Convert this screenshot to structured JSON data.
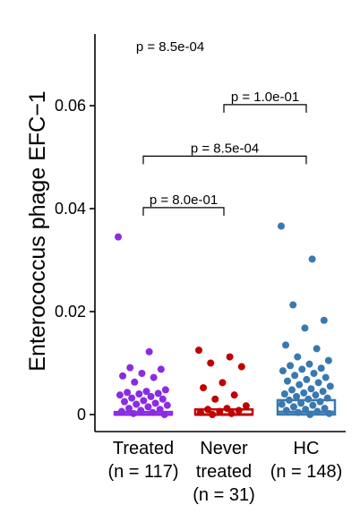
{
  "chart_data": {
    "type": "jitter-box",
    "title": "",
    "ylabel": "Enterococcus phage EFC−1",
    "xlabel": "",
    "ylim": [
      -0.0025,
      0.072
    ],
    "yticks": [
      0,
      0.02,
      0.04,
      0.06
    ],
    "ytick_labels": [
      "0",
      "0.02",
      "0.04",
      "0.06"
    ],
    "grid": false,
    "overall_test": {
      "label": "p = 8.5e-04"
    },
    "groups": [
      {
        "label_lines": [
          "Treated",
          "(n = 117)"
        ],
        "color": "#8B2BE2",
        "box": {
          "q1": 0.0,
          "median": 0.0,
          "q3": 0.0005
        },
        "points": [
          0.0345,
          0.0122,
          0.0091,
          0.0088,
          0.008,
          0.0075,
          0.0072,
          0.0063,
          0.0048,
          0.0045,
          0.0043,
          0.0041,
          0.004,
          0.0038,
          0.0035,
          0.0032,
          0.003,
          0.0027,
          0.0025,
          0.0022,
          0.002,
          0.0018,
          0.0015,
          0.0012,
          0.001,
          0.0008,
          0.0006,
          0.0004,
          0.0002,
          0.0
        ]
      },
      {
        "label_lines": [
          "Never",
          "treated",
          "(n = 31)"
        ],
        "color": "#C00000",
        "box": {
          "q1": 0.0,
          "median": 0.0,
          "q3": 0.001
        },
        "points": [
          0.0125,
          0.0112,
          0.01,
          0.0093,
          0.0062,
          0.0052,
          0.0038,
          0.003,
          0.0017,
          0.0012,
          0.001,
          0.0008,
          0.0006,
          0.0004,
          0.0002,
          0.0
        ]
      },
      {
        "label_lines": [
          "HC",
          "(n = 148)"
        ],
        "color": "#3A78B0",
        "box": {
          "q1": 0.0,
          "median": 0.0005,
          "q3": 0.0028
        },
        "points": [
          0.0366,
          0.0302,
          0.0213,
          0.0183,
          0.0168,
          0.0135,
          0.0128,
          0.0112,
          0.0105,
          0.0098,
          0.0095,
          0.009,
          0.0088,
          0.0085,
          0.008,
          0.0076,
          0.0072,
          0.0068,
          0.0065,
          0.0062,
          0.0058,
          0.0055,
          0.005,
          0.0048,
          0.0045,
          0.0042,
          0.004,
          0.0038,
          0.0035,
          0.0032,
          0.003,
          0.0028,
          0.0025,
          0.0022,
          0.002,
          0.0018,
          0.0015,
          0.0012,
          0.001,
          0.0008,
          0.0006,
          0.0004,
          0.0002,
          0.0
        ]
      }
    ],
    "comparisons": [
      {
        "from": 0,
        "to": 1,
        "label": "p = 8.0e-01",
        "y": 0.0402
      },
      {
        "from": 0,
        "to": 2,
        "label": "p = 8.5e-04",
        "y": 0.0502
      },
      {
        "from": 1,
        "to": 2,
        "label": "p = 1.0e-01",
        "y": 0.0602
      }
    ]
  }
}
